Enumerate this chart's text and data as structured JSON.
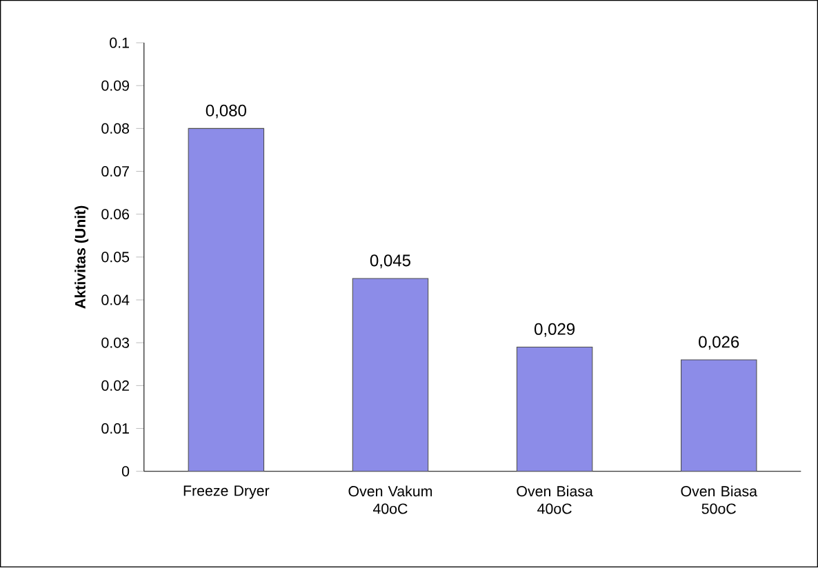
{
  "chart_data": {
    "type": "bar",
    "ylabel": "Aktivitas (Unit)",
    "categories": [
      "Freeze Dryer",
      "Oven Vakum 40oC",
      "Oven Biasa 40oC",
      "Oven Biasa 50oC"
    ],
    "values": [
      0.08,
      0.045,
      0.029,
      0.026
    ],
    "value_labels": [
      "0,080",
      "0,045",
      "0,029",
      "0,026"
    ],
    "color": "#8c8ce8",
    "ylim": [
      0,
      0.1
    ],
    "yticks": [
      0,
      0.01,
      0.02,
      0.03,
      0.04,
      0.05,
      0.06,
      0.07,
      0.08,
      0.09,
      0.1
    ],
    "grid": false
  }
}
